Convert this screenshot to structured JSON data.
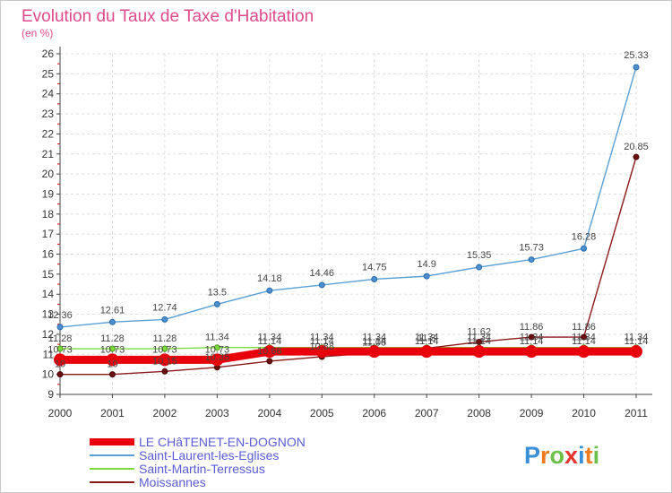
{
  "chart_data": {
    "type": "line",
    "title": "Evolution du Taux de Taxe d'Habitation",
    "ylabel": "(en %)",
    "xlabel": "",
    "ylim": [
      9,
      26
    ],
    "yticks": [
      "9",
      "10",
      "11",
      "12",
      "13",
      "14",
      "15",
      "16",
      "17",
      "18",
      "19",
      "20",
      "21",
      "22",
      "23",
      "24",
      "25",
      "26"
    ],
    "categories": [
      "2000",
      "2001",
      "2002",
      "2003",
      "2004",
      "2005",
      "2006",
      "2007",
      "2008",
      "2009",
      "2010",
      "2011"
    ],
    "grid": true,
    "legend_position": "bottom-left",
    "series": [
      {
        "name": "LE CHâTENET-EN-DOGNON",
        "color": "#e8000b",
        "values": [
          10.73,
          10.73,
          10.73,
          10.73,
          11.14,
          11.14,
          11.14,
          11.14,
          11.14,
          11.14,
          11.14,
          11.14
        ],
        "labels": [
          "10.73",
          "10.73",
          "10.73",
          "10.73",
          "11.14",
          "11.14",
          "11.14",
          "11.14",
          "11.14",
          "11.14",
          "11.14",
          "11.14"
        ]
      },
      {
        "name": "Saint-Laurent-les-Eglises",
        "color": "#5a9fd4",
        "values": [
          12.36,
          12.61,
          12.74,
          13.5,
          14.18,
          14.46,
          14.75,
          14.9,
          15.35,
          15.73,
          16.28,
          25.33
        ],
        "labels": [
          "12.36",
          "12.61",
          "12.74",
          "13.5",
          "14.18",
          "14.46",
          "14.75",
          "14.9",
          "15.35",
          "15.73",
          "16.28",
          "25.33"
        ]
      },
      {
        "name": "Saint-Martin-Terressus",
        "color": "#7ddc3c",
        "values": [
          11.28,
          11.28,
          11.28,
          11.34,
          11.34,
          11.34,
          11.34,
          11.34,
          11.34,
          11.34,
          11.34,
          11.34
        ],
        "labels": [
          "11.28",
          "11.28",
          "11.28",
          "11.34",
          "11.34",
          "11.34",
          "11.34",
          "11.34",
          "11.34",
          "11.34",
          "11.34",
          "11.34"
        ]
      },
      {
        "name": "Moissannes",
        "color": "#8b1a1a",
        "values": [
          10,
          10,
          10.15,
          10.35,
          10.66,
          10.88,
          11.08,
          11.3,
          11.62,
          11.86,
          11.86,
          20.85
        ],
        "labels": [
          "10",
          "10",
          "10.15",
          "10.35",
          "10.66",
          "10.88",
          "11.08",
          "11.3",
          "11.62",
          "11.86",
          "11.86",
          "20.85"
        ]
      }
    ]
  },
  "logo": {
    "text": "Proxiti",
    "colors": [
      "#3a8fd9",
      "#f07a1e",
      "#6cc04a",
      "#e8342b"
    ]
  }
}
